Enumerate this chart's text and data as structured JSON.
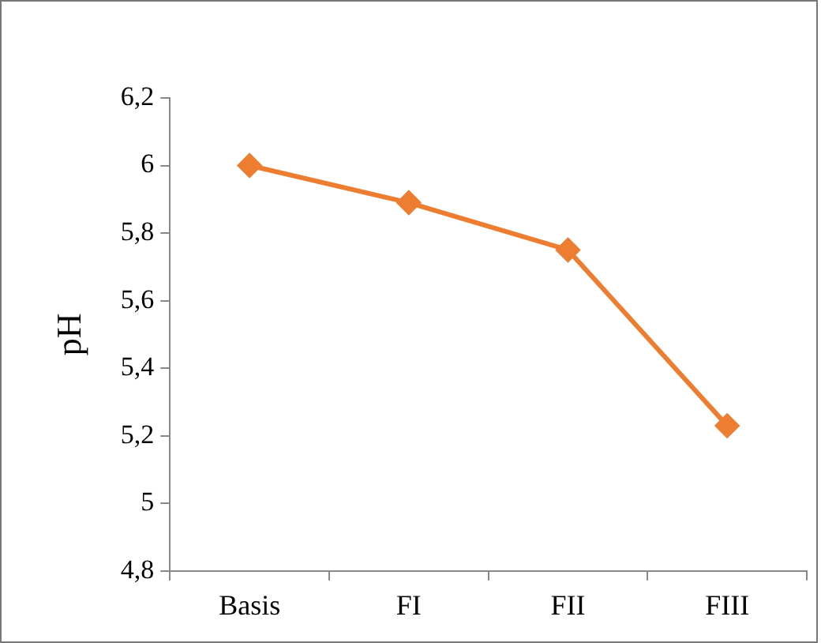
{
  "chart_data": {
    "type": "line",
    "ylabel": "pH",
    "categories": [
      "Basis",
      "FI",
      "FII",
      "FIII"
    ],
    "series": [
      {
        "color": "#ed7d31",
        "values": [
          6.0,
          5.89,
          5.75,
          5.23
        ]
      }
    ],
    "ylim": [
      4.8,
      6.2
    ],
    "yticks": [
      {
        "value": 4.8,
        "label": "4,8"
      },
      5,
      {
        "value": 5.2,
        "label": "5,2"
      },
      {
        "value": 5.4,
        "label": "5,4"
      },
      {
        "value": 5.6,
        "label": "5,6"
      },
      {
        "value": 5.8,
        "label": "5,8"
      },
      6,
      {
        "value": 6.2,
        "label": "6,2"
      }
    ],
    "grid": false,
    "legend": false,
    "marker": "diamond",
    "line_style": "solid"
  }
}
